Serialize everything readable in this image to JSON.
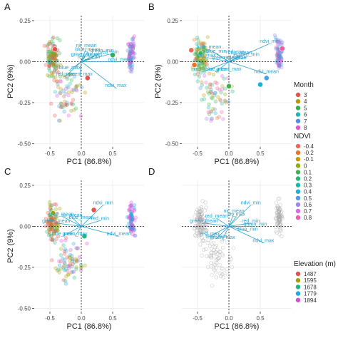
{
  "colors": {
    "month": [
      "#e7504d",
      "#b59a00",
      "#33b24a",
      "#1fb9b3",
      "#4a8fe8",
      "#e055d6"
    ],
    "ndvi": [
      "#f0685c",
      "#e8742a",
      "#c99a00",
      "#8fae00",
      "#3fb24a",
      "#21b873",
      "#18b9a6",
      "#1ab1d6",
      "#4a9cf0",
      "#9c86f2",
      "#db66e8",
      "#f25aa7"
    ],
    "elevation": [
      "#e7504d",
      "#a4a000",
      "#1fb87c",
      "#1aa9e0",
      "#d94fd6"
    ],
    "arrow": "#2aa3cf",
    "background_points": "#9a9a9a"
  },
  "chart_data": [
    {
      "panel": "A",
      "type": "scatter",
      "color_by": "month",
      "xlabel": "PC1 (86.8%)",
      "ylabel": "PC2 (9%)",
      "xlim": [
        -0.75,
        1.0
      ],
      "ylim": [
        -0.52,
        0.28
      ],
      "xticks": [
        "-0.5",
        "0.0",
        "0.5"
      ],
      "yticks": [
        "0.25",
        "0.00",
        "-0.25",
        "-0.50"
      ],
      "centroids": [
        {
          "x": 0.5,
          "y": 0.04,
          "group": 5
        },
        {
          "x": -0.42,
          "y": 0.075,
          "group": 3
        },
        {
          "x": 0.1,
          "y": -0.1,
          "group": 3
        }
      ],
      "loadings": [
        {
          "name": "nir_mean",
          "x": 0.08,
          "y": 0.085
        },
        {
          "name": "blue_mean",
          "x": 0.1,
          "y": 0.06
        },
        {
          "name": "red_min",
          "x": 0.45,
          "y": 0.045
        },
        {
          "name": "green_min",
          "x": 0.33,
          "y": 0.055
        },
        {
          "name": "nir_min",
          "x": 0.2,
          "y": 0.03
        },
        {
          "name": "ndvi_mean",
          "x": 0.62,
          "y": 0.0
        },
        {
          "name": "green_mean",
          "x": 0.06,
          "y": 0.03
        },
        {
          "name": "red_mean",
          "x": 0.12,
          "y": 0.015
        },
        {
          "name": "blue_max",
          "x": -0.18,
          "y": -0.05
        },
        {
          "name": "red_max",
          "x": -0.25,
          "y": -0.09
        },
        {
          "name": "green_max",
          "x": -0.02,
          "y": -0.09
        },
        {
          "name": "ndvi_max",
          "x": 0.55,
          "y": -0.16
        }
      ]
    },
    {
      "panel": "B",
      "type": "scatter",
      "color_by": "ndvi",
      "xlabel": "PC1 (86.8%)",
      "ylabel": "PC2 (9%)",
      "xlim": [
        -0.75,
        1.0
      ],
      "ylim": [
        -0.52,
        0.28
      ],
      "xticks": [
        "-0.5",
        "0.0",
        "0.5"
      ],
      "yticks": [
        "0.25",
        "0.00",
        "-0.25",
        "-0.50"
      ],
      "centroids": [
        {
          "x": -0.6,
          "y": 0.07,
          "group": -0.4
        },
        {
          "x": -0.45,
          "y": 0.05,
          "group": 0.1
        },
        {
          "x": -0.55,
          "y": -0.02,
          "group": -0.2
        },
        {
          "x": 0.0,
          "y": -0.15,
          "group": 0.1
        },
        {
          "x": 0.6,
          "y": -0.1,
          "group": 0.5
        },
        {
          "x": 0.5,
          "y": -0.14,
          "group": 0.4
        },
        {
          "x": 0.85,
          "y": 0.08,
          "group": 0.8
        }
      ],
      "loadings": [
        {
          "name": "ndvi_min",
          "x": 0.65,
          "y": 0.11
        },
        {
          "name": "nir_max",
          "x": -0.35,
          "y": 0.025
        },
        {
          "name": "blue_mean",
          "x": -0.32,
          "y": 0.075
        },
        {
          "name": "blue_min",
          "x": -0.2,
          "y": 0.05
        },
        {
          "name": "red_min",
          "x": 0.1,
          "y": 0.045
        },
        {
          "name": "nir_mean",
          "x": 0.2,
          "y": 0.04
        },
        {
          "name": "green_mean",
          "x": -0.05,
          "y": 0.01
        },
        {
          "name": "red_mean",
          "x": 0.1,
          "y": 0.01
        },
        {
          "name": "green_min",
          "x": 0.3,
          "y": 0.03
        },
        {
          "name": "blue_max",
          "x": -0.2,
          "y": -0.06
        },
        {
          "name": "green_max",
          "x": 0.0,
          "y": -0.06
        },
        {
          "name": "red_max",
          "x": -0.4,
          "y": -0.06
        },
        {
          "name": "ndvi_mean",
          "x": 0.6,
          "y": -0.075
        }
      ]
    },
    {
      "panel": "C",
      "type": "scatter",
      "color_by": "elevation",
      "xlabel": "PC1 (86.8%)",
      "ylabel": "PC2 (9%)",
      "xlim": [
        -0.75,
        1.0
      ],
      "ylim": [
        -0.52,
        0.28
      ],
      "xticks": [
        "-0.5",
        "0.0",
        "0.5"
      ],
      "yticks": [
        "0.25",
        "0.00",
        "-0.25",
        "-0.50"
      ],
      "centroids": [
        {
          "x": 0.2,
          "y": 0.1,
          "group": 1487
        },
        {
          "x": -0.45,
          "y": 0.08,
          "group": 1595
        },
        {
          "x": 0.05,
          "y": -0.06,
          "group": 1678
        }
      ],
      "loadings": [
        {
          "name": "ndvi_min",
          "x": 0.35,
          "y": 0.13
        },
        {
          "name": "nir_mean",
          "x": -0.15,
          "y": 0.055
        },
        {
          "name": "blue_mean",
          "x": 0.0,
          "y": 0.04
        },
        {
          "name": "red_mean",
          "x": -0.3,
          "y": 0.06
        },
        {
          "name": "green_mean",
          "x": -0.4,
          "y": 0.02
        },
        {
          "name": "red_min",
          "x": 0.3,
          "y": 0.035
        },
        {
          "name": "blue_max",
          "x": -0.3,
          "y": -0.06
        },
        {
          "name": "green_max",
          "x": -0.1,
          "y": -0.06
        },
        {
          "name": "ndvi_mean",
          "x": 0.6,
          "y": -0.06
        }
      ]
    },
    {
      "panel": "D",
      "type": "scatter",
      "color_by": "none",
      "xlabel": "PC1 (86.8%)",
      "ylabel": "",
      "xlim": [
        -0.75,
        1.0
      ],
      "ylim": [
        -0.52,
        0.28
      ],
      "xticks": [
        "-0.5",
        "0.0",
        "0.5"
      ],
      "yticks": [],
      "centroids": [],
      "loadings": [
        {
          "name": "ndvi_min",
          "x": 0.35,
          "y": 0.13
        },
        {
          "name": "nir_mean",
          "x": 0.08,
          "y": 0.08
        },
        {
          "name": "nir_max",
          "x": 0.12,
          "y": 0.06
        },
        {
          "name": "red_mean",
          "x": -0.2,
          "y": 0.05
        },
        {
          "name": "green_mean",
          "x": -0.4,
          "y": 0.02
        },
        {
          "name": "red_min",
          "x": 0.35,
          "y": 0.02
        },
        {
          "name": "green_min",
          "x": 0.42,
          "y": 0.0
        },
        {
          "name": "blue_min",
          "x": 0.3,
          "y": -0.03
        },
        {
          "name": "red_max",
          "x": -0.3,
          "y": -0.06
        },
        {
          "name": "blue_max",
          "x": -0.2,
          "y": -0.075
        },
        {
          "name": "green_max",
          "x": -0.1,
          "y": -0.08
        },
        {
          "name": "ndvi_max",
          "x": 0.55,
          "y": -0.1
        }
      ]
    }
  ],
  "panels": {
    "A": {
      "label": "A"
    },
    "B": {
      "label": "B"
    },
    "C": {
      "label": "C"
    },
    "D": {
      "label": "D"
    }
  },
  "legends": {
    "month": {
      "title": "Month",
      "entries": [
        "3",
        "4",
        "5",
        "6",
        "7",
        "8"
      ]
    },
    "ndvi": {
      "title": "NDVI",
      "entries": [
        "-0.4",
        "-0.2",
        "-0.1",
        "0",
        "0.1",
        "0.2",
        "0.3",
        "0.4",
        "0.5",
        "0.6",
        "0.7",
        "0.8"
      ]
    },
    "elevation": {
      "title": "Elevation (m)",
      "entries": [
        "1487",
        "1595",
        "1678",
        "1779",
        "1894"
      ]
    }
  }
}
